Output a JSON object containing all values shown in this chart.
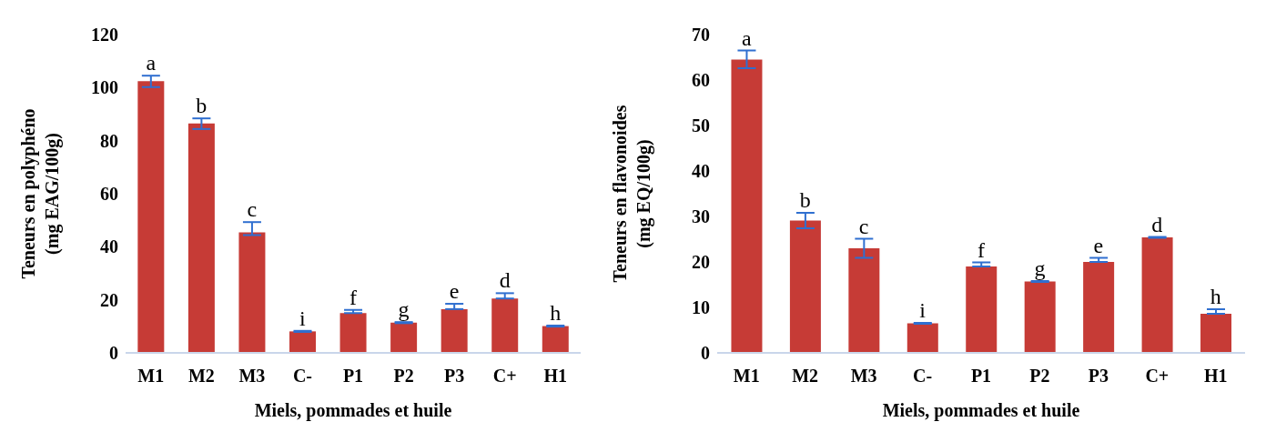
{
  "chart_data": [
    {
      "type": "bar",
      "xlabel": "Miels, pommades et huile",
      "ylabel": "Teneurs en polyphéno\n(mg EAG/100g)",
      "categories": [
        "M1",
        "M2",
        "M3",
        "C-",
        "P1",
        "P2",
        "P3",
        "C+",
        "H1"
      ],
      "values": [
        102.4,
        86.5,
        45.4,
        8.1,
        15.0,
        11.4,
        16.5,
        20.5,
        10.1
      ],
      "errors": [
        [
          100.2,
          104.5
        ],
        [
          84.4,
          88.4
        ],
        [
          44.4,
          49.3
        ],
        0.2,
        [
          15.0,
          16.2
        ],
        0.2,
        [
          16.5,
          18.5
        ],
        [
          20.5,
          22.5
        ],
        0.2
      ],
      "color": "#c63b36",
      "ylim": [
        0,
        120
      ],
      "yticks": [
        0,
        20,
        40,
        60,
        80,
        100,
        120
      ],
      "annotations": [
        {
          "text": "a",
          "x": "M1",
          "y": 104.5
        },
        {
          "text": "b",
          "x": "M2",
          "y": 88.4
        },
        {
          "text": "c",
          "x": "M3",
          "y": 49.3
        },
        {
          "text": "i",
          "x": "C-",
          "y": 8.3
        },
        {
          "text": "f",
          "x": "P1",
          "y": 16.2
        },
        {
          "text": "g",
          "x": "P2",
          "y": 11.6
        },
        {
          "text": "e",
          "x": "P3",
          "y": 18.5
        },
        {
          "text": "d",
          "x": "C+",
          "y": 22.5
        },
        {
          "text": "h",
          "x": "H1",
          "y": 10.3
        }
      ]
    },
    {
      "type": "bar",
      "xlabel": "Miels, pommades et huile",
      "ylabel": "Teneurs en flavonoides\n(mg EQ/100g)",
      "categories": [
        "M1",
        "M2",
        "M3",
        "C-",
        "P1",
        "P2",
        "P3",
        "C+",
        "H1"
      ],
      "values": [
        64.5,
        29.1,
        23.0,
        6.5,
        19.0,
        15.7,
        20.0,
        25.4,
        8.6
      ],
      "errors": [
        [
          62.6,
          66.5
        ],
        [
          27.4,
          30.8
        ],
        [
          20.9,
          25.1
        ],
        0.1,
        [
          19.0,
          19.9
        ],
        0.1,
        [
          20.0,
          20.9
        ],
        0.1,
        [
          8.6,
          9.6
        ]
      ],
      "color": "#c63b36",
      "ylim": [
        0,
        70
      ],
      "yticks": [
        0,
        10,
        20,
        30,
        40,
        50,
        60,
        70
      ],
      "annotations": [
        {
          "text": "a",
          "x": "M1",
          "y": 66.5
        },
        {
          "text": "b",
          "x": "M2",
          "y": 30.8
        },
        {
          "text": "c",
          "x": "M3",
          "y": 25.1
        },
        {
          "text": "i",
          "x": "C-",
          "y": 6.6
        },
        {
          "text": "f",
          "x": "P1",
          "y": 19.9
        },
        {
          "text": "g",
          "x": "P2",
          "y": 15.8
        },
        {
          "text": "e",
          "x": "P3",
          "y": 20.9
        },
        {
          "text": "d",
          "x": "C+",
          "y": 25.5
        },
        {
          "text": "h",
          "x": "H1",
          "y": 9.6
        }
      ]
    }
  ]
}
